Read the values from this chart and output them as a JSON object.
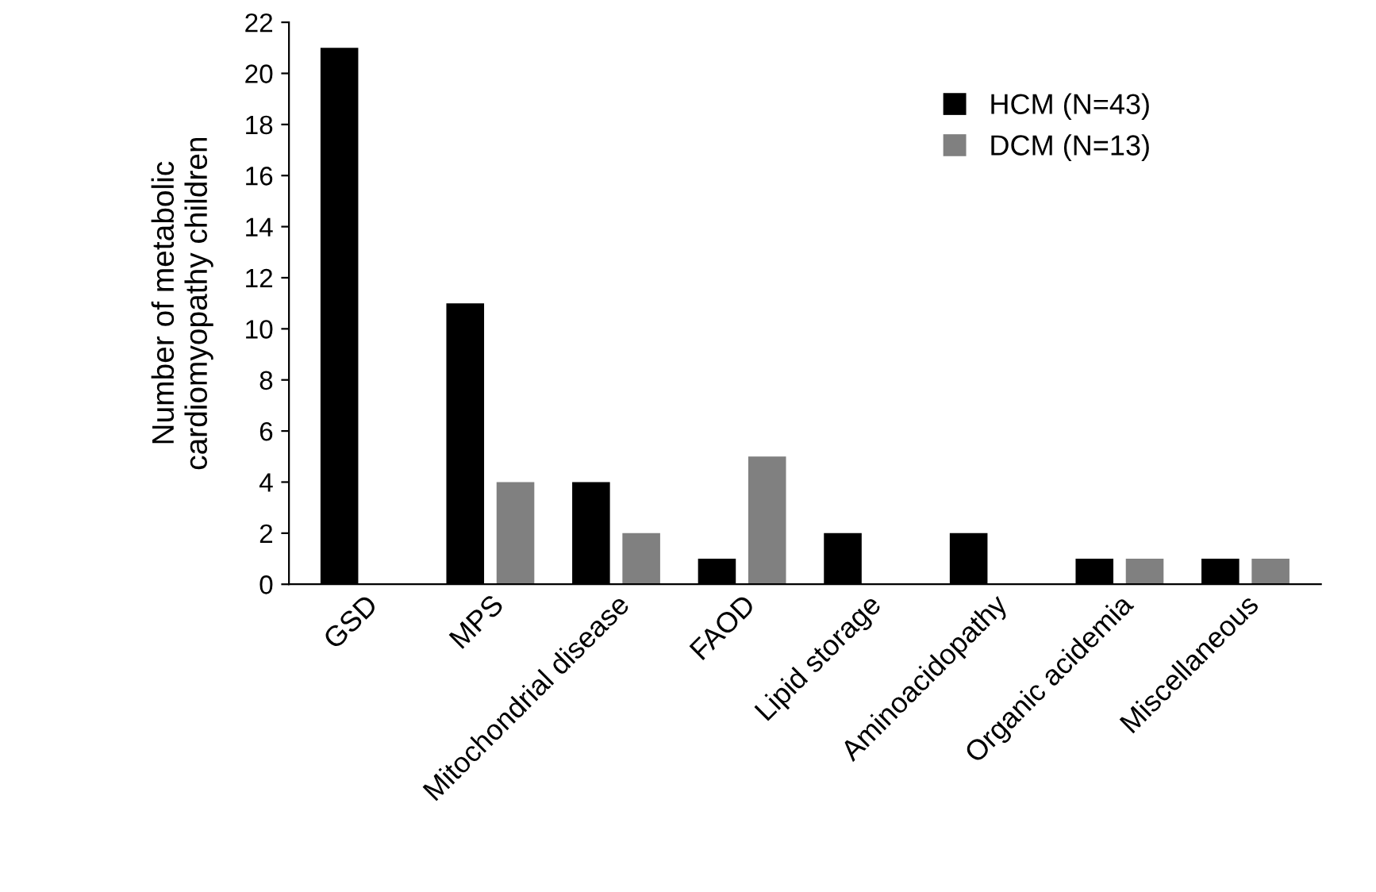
{
  "chart_data": {
    "type": "bar",
    "ylabel": "Number of metabolic\ncardiomyopathy children",
    "categories": [
      "GSD",
      "MPS",
      "Mitochondrial disease",
      "FAOD",
      "Lipid storage",
      "Aminoacidopathy",
      "Organic acidemia",
      "Miscellaneous"
    ],
    "series": [
      {
        "name": "HCM (N=43)",
        "color": "#000000",
        "values": [
          21,
          11,
          4,
          1,
          2,
          2,
          1,
          1
        ]
      },
      {
        "name": "DCM (N=13)",
        "color": "#808080",
        "values": [
          0,
          4,
          2,
          5,
          0,
          0,
          1,
          1
        ]
      }
    ],
    "ylim": [
      0,
      22
    ],
    "yticks": [
      0,
      2,
      4,
      6,
      8,
      10,
      12,
      14,
      16,
      18,
      20,
      22
    ],
    "grid": false,
    "legend": "top right"
  }
}
